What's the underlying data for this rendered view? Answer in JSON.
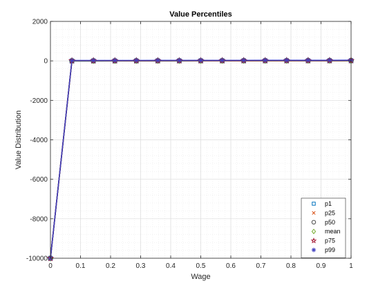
{
  "chart_data": {
    "type": "line",
    "title": "Value Percentiles",
    "xlabel": "Wage",
    "ylabel": "Value Distribution",
    "xlim": [
      0,
      1
    ],
    "ylim": [
      -10000,
      2000
    ],
    "xticks": [
      0,
      0.1,
      0.2,
      0.3,
      0.4,
      0.5,
      0.6,
      0.7,
      0.8,
      0.9,
      1
    ],
    "xtick_labels": [
      "0",
      "0.1",
      "0.2",
      "0.3",
      "0.4",
      "0.5",
      "0.6",
      "0.7",
      "0.8",
      "0.9",
      "1"
    ],
    "yticks": [
      -10000,
      -8000,
      -6000,
      -4000,
      -2000,
      0,
      2000
    ],
    "ytick_labels": [
      "-10000",
      "-8000",
      "-6000",
      "-4000",
      "-2000",
      "0",
      "2000"
    ],
    "grid": true,
    "minor_grid": true,
    "legend_position": "bottom-right",
    "x": [
      0,
      0.0714,
      0.1429,
      0.2143,
      0.2857,
      0.3571,
      0.4286,
      0.5,
      0.5714,
      0.6429,
      0.7143,
      0.7857,
      0.8571,
      0.9286,
      1
    ],
    "series": [
      {
        "name": "p1",
        "color": "#0072BD",
        "marker": "square",
        "values": [
          -10000,
          -10,
          -8,
          -7,
          -6,
          -5,
          -4,
          -3,
          -3,
          -2,
          -2,
          -1,
          -1,
          0,
          0
        ]
      },
      {
        "name": "p25",
        "color": "#D95319",
        "marker": "x",
        "values": [
          -10000,
          0,
          1,
          1,
          2,
          2,
          3,
          3,
          4,
          4,
          5,
          5,
          6,
          6,
          7
        ]
      },
      {
        "name": "p50",
        "color": "#4D4D4D",
        "marker": "circle",
        "values": [
          -10000,
          5,
          6,
          7,
          8,
          9,
          10,
          11,
          12,
          13,
          14,
          15,
          16,
          17,
          18
        ]
      },
      {
        "name": "mean",
        "color": "#77AC30",
        "marker": "diamond",
        "values": [
          -10000,
          4,
          5,
          6,
          7,
          8,
          9,
          10,
          11,
          12,
          13,
          14,
          15,
          16,
          17
        ]
      },
      {
        "name": "p75",
        "color": "#A2142F",
        "marker": "pentagram",
        "values": [
          -10000,
          10,
          11,
          12,
          13,
          14,
          15,
          16,
          17,
          18,
          19,
          20,
          21,
          22,
          23
        ]
      },
      {
        "name": "p99",
        "color": "#4040C0",
        "marker": "asterisk",
        "values": [
          -10000,
          20,
          21,
          22,
          23,
          24,
          25,
          26,
          27,
          28,
          29,
          30,
          31,
          32,
          33
        ]
      }
    ]
  }
}
